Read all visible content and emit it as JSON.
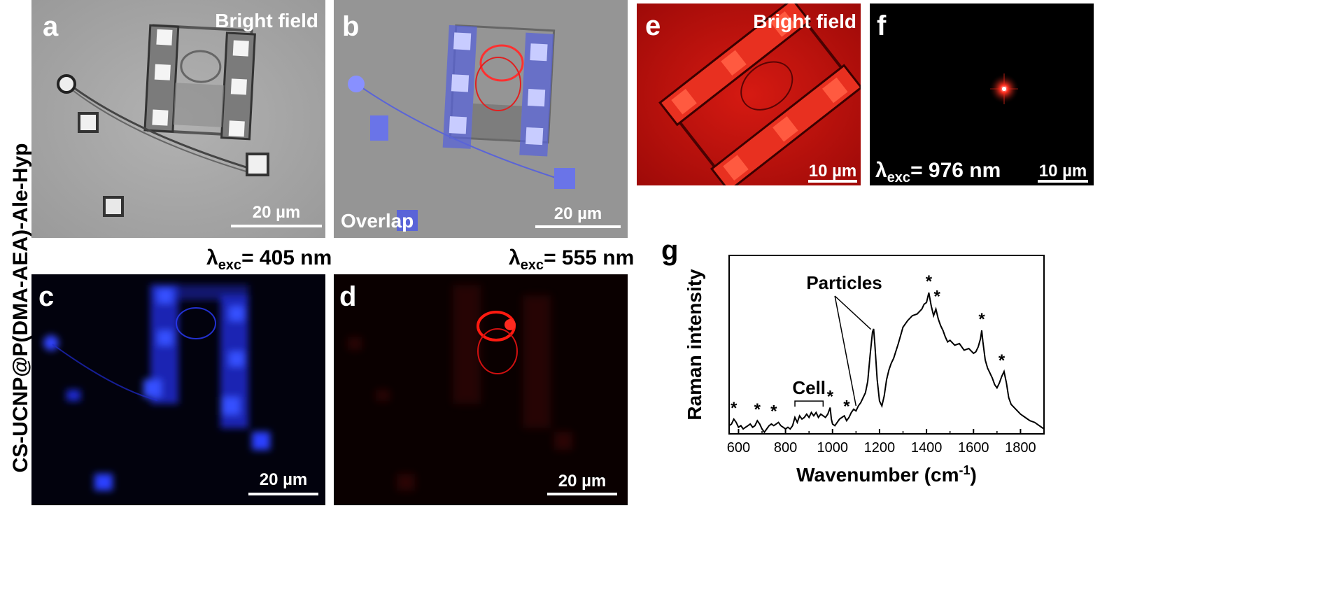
{
  "figure": {
    "side_label": "CS-UCNP@P(DMA-AEA)-Ale-Hyp",
    "panels": {
      "a": {
        "letter": "a",
        "tag": "Bright field",
        "scale": "20 µm"
      },
      "b": {
        "letter": "b",
        "tag": "Overlap",
        "scale": "20 µm"
      },
      "c": {
        "letter": "c",
        "exc_prefix": "λ",
        "exc_sub": "exc",
        "exc_value": "= 405 nm",
        "scale": "20 µm"
      },
      "d": {
        "letter": "d",
        "exc_prefix": "λ",
        "exc_sub": "exc",
        "exc_value": "= 555 nm",
        "scale": "20 µm"
      },
      "e": {
        "letter": "e",
        "tag": "Bright field",
        "scale": "10 µm"
      },
      "f": {
        "letter": "f",
        "exc_prefix": "λ",
        "exc_sub": "exc",
        "exc_value": "= 976 nm",
        "scale": "10 µm"
      },
      "g": {
        "letter": "g"
      }
    },
    "colors": {
      "brightfield_gray": "#a9a9a9",
      "blue_channel": "#1a2bff",
      "red_channel": "#ff1a10",
      "black": "#000000"
    }
  },
  "chart_data": {
    "type": "line",
    "xlabel_main": "Wavenumber (cm",
    "xlabel_sup": "-1",
    "xlabel_tail": ")",
    "ylabel": "Raman intensity",
    "xlim": [
      560,
      1900
    ],
    "ylim": [
      0,
      1
    ],
    "xticks": [
      600,
      800,
      1000,
      1200,
      1400,
      1600,
      1800
    ],
    "xtick_labels": [
      "600",
      "800",
      "1000",
      "1200",
      "1400",
      "1600",
      "1800"
    ],
    "series": [
      {
        "x": [
          560,
          570,
          580,
          590,
          600,
          610,
          620,
          630,
          640,
          650,
          660,
          670,
          680,
          690,
          700,
          710,
          720,
          730,
          740,
          750,
          760,
          770,
          780,
          790,
          800,
          810,
          820,
          830,
          840,
          850,
          860,
          870,
          880,
          890,
          900,
          910,
          920,
          930,
          940,
          950,
          960,
          970,
          980,
          990,
          995,
          1000,
          1010,
          1020,
          1030,
          1040,
          1050,
          1060,
          1070,
          1080,
          1090,
          1100,
          1110,
          1120,
          1130,
          1140,
          1150,
          1160,
          1170,
          1175,
          1180,
          1190,
          1200,
          1210,
          1220,
          1230,
          1240,
          1250,
          1260,
          1280,
          1300,
          1320,
          1340,
          1360,
          1380,
          1390,
          1400,
          1410,
          1420,
          1430,
          1440,
          1450,
          1460,
          1470,
          1480,
          1490,
          1500,
          1520,
          1540,
          1560,
          1580,
          1600,
          1610,
          1620,
          1630,
          1635,
          1640,
          1650,
          1660,
          1670,
          1680,
          1690,
          1700,
          1710,
          1720,
          1730,
          1740,
          1750,
          1760,
          1780,
          1800,
          1820,
          1840,
          1860,
          1880,
          1900
        ],
        "y": [
          0.05,
          0.06,
          0.09,
          0.07,
          0.04,
          0.05,
          0.03,
          0.04,
          0.05,
          0.06,
          0.04,
          0.05,
          0.08,
          0.06,
          0.03,
          0.01,
          0.03,
          0.05,
          0.06,
          0.05,
          0.06,
          0.07,
          0.05,
          0.04,
          0.03,
          0.04,
          0.03,
          0.05,
          0.1,
          0.07,
          0.11,
          0.09,
          0.1,
          0.12,
          0.1,
          0.13,
          0.11,
          0.13,
          0.1,
          0.12,
          0.11,
          0.1,
          0.12,
          0.16,
          0.09,
          0.06,
          0.05,
          0.07,
          0.09,
          0.1,
          0.11,
          0.08,
          0.1,
          0.13,
          0.15,
          0.14,
          0.17,
          0.19,
          0.22,
          0.25,
          0.32,
          0.48,
          0.62,
          0.64,
          0.55,
          0.33,
          0.2,
          0.17,
          0.23,
          0.33,
          0.39,
          0.43,
          0.46,
          0.55,
          0.65,
          0.69,
          0.72,
          0.73,
          0.76,
          0.79,
          0.8,
          0.86,
          0.78,
          0.72,
          0.76,
          0.7,
          0.66,
          0.63,
          0.59,
          0.56,
          0.57,
          0.54,
          0.55,
          0.51,
          0.52,
          0.49,
          0.5,
          0.53,
          0.58,
          0.63,
          0.56,
          0.45,
          0.4,
          0.37,
          0.34,
          0.3,
          0.28,
          0.31,
          0.35,
          0.38,
          0.31,
          0.22,
          0.18,
          0.15,
          0.12,
          0.1,
          0.08,
          0.07,
          0.05,
          0.03
        ]
      }
    ],
    "annotations": {
      "particles": "Particles",
      "cell": "Cell",
      "star": "*",
      "star_x": [
        580,
        680,
        750,
        990,
        1060,
        1410,
        1445,
        1635,
        1720
      ],
      "star_y": [
        0.09,
        0.08,
        0.07,
        0.16,
        0.1,
        0.86,
        0.77,
        0.63,
        0.38
      ],
      "particles_peaks_x": [
        1100,
        1175
      ],
      "cell_bracket_x": [
        840,
        960
      ]
    }
  }
}
